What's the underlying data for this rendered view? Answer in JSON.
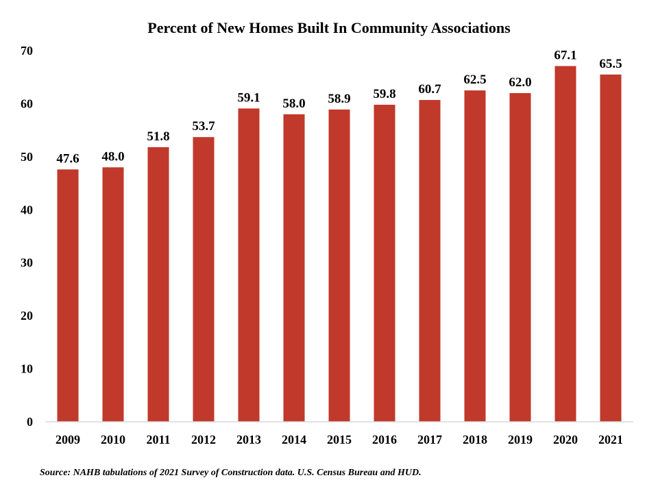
{
  "chart_data": {
    "type": "bar",
    "title": "Percent of New Homes Built In Community Associations",
    "source": "Source: NAHB tabulations of 2021 Survey of Construction data. U.S. Census Bureau and HUD.",
    "categories": [
      "2009",
      "2010",
      "2011",
      "2012",
      "2013",
      "2014",
      "2015",
      "2016",
      "2017",
      "2018",
      "2019",
      "2020",
      "2021"
    ],
    "values": [
      47.6,
      48.0,
      51.8,
      53.7,
      59.1,
      58.0,
      58.9,
      59.8,
      60.7,
      62.5,
      62.0,
      67.1,
      65.5
    ],
    "value_labels": [
      "47.6",
      "48.0",
      "51.8",
      "53.7",
      "59.1",
      "58.0",
      "58.9",
      "59.8",
      "60.7",
      "62.5",
      "62.0",
      "67.1",
      "65.5"
    ],
    "y_ticks": [
      "0",
      "10",
      "20",
      "30",
      "40",
      "50",
      "60",
      "70"
    ],
    "xlabel": "",
    "ylabel": "",
    "ylim": [
      0,
      70
    ],
    "grid": false,
    "legend": "none",
    "bar_color": "#c0392b"
  }
}
